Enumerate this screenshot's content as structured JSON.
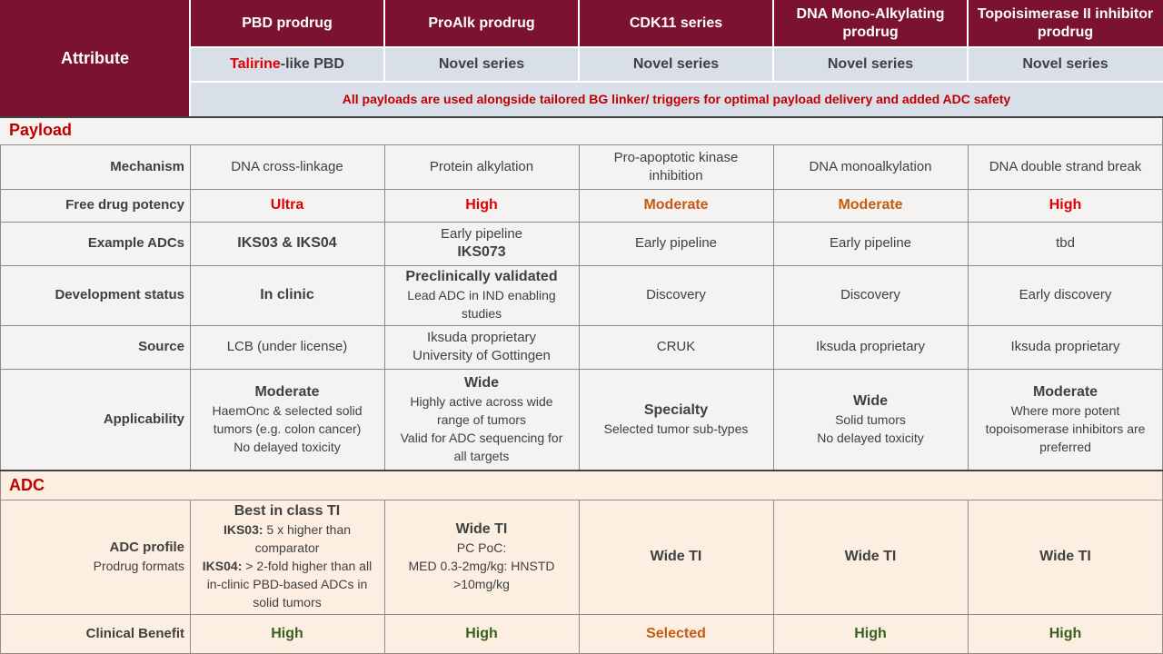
{
  "header": {
    "attribute_label": "Attribute",
    "columns": [
      {
        "title": "PBD prodrug",
        "series_prefix": "Talirine",
        "series_suffix": "-like PBD"
      },
      {
        "title": "ProAlk prodrug",
        "series": "Novel series"
      },
      {
        "title": "CDK11 series",
        "series": "Novel series"
      },
      {
        "title": "DNA Mono-Alkylating prodrug",
        "series": "Novel series"
      },
      {
        "title": "Topoisimerase II inhibitor prodrug",
        "series": "Novel series"
      }
    ],
    "banner": "All payloads are used alongside tailored BG linker/ triggers for optimal payload delivery and added ADC safety"
  },
  "sections": {
    "payload": "Payload",
    "adc": "ADC"
  },
  "rows": {
    "mechanism": {
      "label": "Mechanism",
      "values": [
        "DNA cross-linkage",
        "Protein alkylation",
        "Pro-apoptotic kinase inhibition",
        "DNA monoalkylation",
        "DNA double strand break"
      ]
    },
    "potency": {
      "label": "Free drug potency",
      "values": [
        "Ultra",
        "High",
        "Moderate",
        "Moderate",
        "High"
      ],
      "colors": [
        "#e00000",
        "#e00000",
        "#c55a11",
        "#c55a11",
        "#e00000"
      ]
    },
    "example": {
      "label": "Example ADCs",
      "c1": "IKS03 & IKS04",
      "c2_line1": "Early pipeline",
      "c2_line2": "IKS073",
      "c3": "Early pipeline",
      "c4": "Early pipeline",
      "c5": "tbd"
    },
    "development": {
      "label": "Development status",
      "c1": "In clinic",
      "c2_title": "Preclinically validated",
      "c2_line1": "Lead ADC in IND enabling",
      "c2_line2": "studies",
      "c3": "Discovery",
      "c4": "Discovery",
      "c5": "Early discovery"
    },
    "source": {
      "label": "Source",
      "c1": "LCB (under license)",
      "c2_line1": "Iksuda proprietary",
      "c2_line2": "University of Gottingen",
      "c3": "CRUK",
      "c4": "Iksuda proprietary",
      "c5": "Iksuda proprietary"
    },
    "applicability": {
      "label": "Applicability",
      "c1": {
        "title": "Moderate",
        "lines": [
          "HaemOnc & selected solid",
          "tumors (e.g. colon cancer)",
          "No delayed toxicity"
        ]
      },
      "c2": {
        "title": "Wide",
        "lines": [
          "Highly active across wide",
          "range of tumors",
          "Valid for ADC sequencing for",
          "all targets"
        ]
      },
      "c3": {
        "title": "Specialty",
        "lines": [
          "Selected tumor sub-types"
        ]
      },
      "c4": {
        "title": "Wide",
        "lines": [
          "Solid tumors",
          "No delayed toxicity"
        ]
      },
      "c5": {
        "title": "Moderate",
        "lines": [
          "Where more potent",
          "topoisomerase inhibitors are",
          "preferred"
        ]
      }
    },
    "adc_profile": {
      "label": "ADC profile",
      "sublabel": "Prodrug formats",
      "c1": {
        "title": "Best in class TI",
        "iks03_label": "IKS03:",
        "iks03_text_a": " 5 x higher than",
        "iks03_text_b": "comparator",
        "iks04_label": "IKS04:",
        "iks04_text_a": " > 2-fold higher than all",
        "iks04_text_b": "in-clinic PBD-based ADCs in",
        "iks04_text_c": "solid tumors"
      },
      "c2": {
        "title": "Wide TI",
        "lines": [
          "PC PoC:",
          "MED 0.3-2mg/kg: HNSTD",
          ">10mg/kg"
        ]
      },
      "c3": "Wide TI",
      "c4": "Wide TI",
      "c5": "Wide TI"
    },
    "clinical": {
      "label": "Clinical Benefit",
      "values": [
        "High",
        "High",
        "Selected",
        "High",
        "High"
      ]
    }
  },
  "colors": {
    "header_maroon": "#7b1230",
    "subheader_grey": "#d8dfe8",
    "accent_red": "#e00000",
    "accent_orange": "#c55a11",
    "accent_green": "#376021",
    "section_red": "#c00000"
  }
}
